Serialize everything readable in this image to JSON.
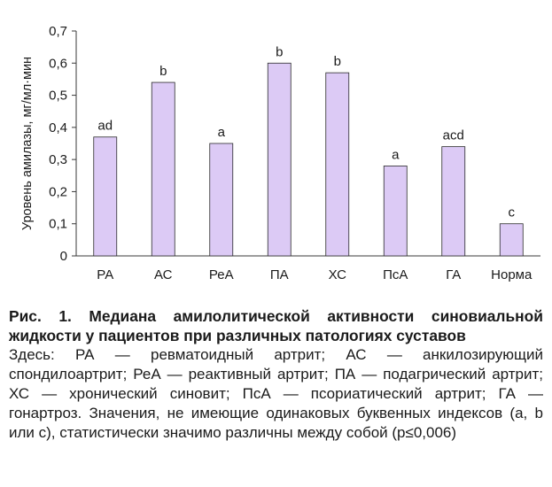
{
  "chart_data": {
    "type": "bar",
    "categories": [
      "РА",
      "АС",
      "РеА",
      "ПА",
      "ХС",
      "ПсА",
      "ГА",
      "Норма"
    ],
    "values": [
      0.37,
      0.54,
      0.35,
      0.6,
      0.57,
      0.28,
      0.34,
      0.1
    ],
    "annotations": [
      "ad",
      "b",
      "a",
      "b",
      "b",
      "a",
      "acd",
      "c"
    ],
    "ylabel": "Уровень амилазы, мг/мл·мин",
    "ylim": [
      0,
      0.7
    ],
    "yticks": [
      "0",
      "0,1",
      "0,2",
      "0,3",
      "0,4",
      "0,5",
      "0,6",
      "0,7"
    ],
    "grid": false,
    "bar_color": "#dccaf5",
    "bar_edge_color": "#2b2b2b"
  },
  "caption": {
    "title": "Рис. 1. Медиана амилолитической активности синовиальной жидкости у пациентов при различных патологиях суставов",
    "note": "Здесь: РА — ревматоидный артрит; АС — анкилозирующий спондилоартрит; РеА — реактивный артрит; ПА — подагрический артрит; ХС — хронический синовит; ПсА — псориатический артрит; ГА — гонартроз. Значения, не имеющие одинаковых буквенных индексов (a, b или c), статистически значимо различны между собой (p≤0,006)"
  }
}
